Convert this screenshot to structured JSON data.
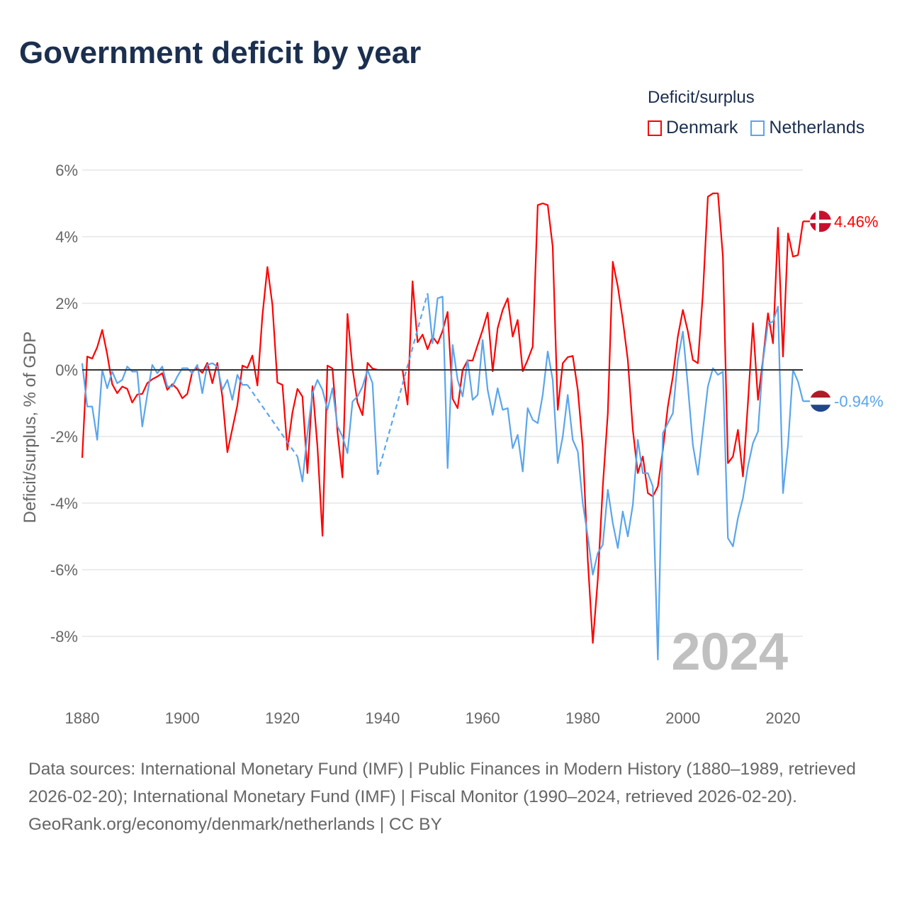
{
  "chart_data": {
    "type": "line",
    "title": "Government deficit by year",
    "ylabel": "Deficit/surplus, % of GDP",
    "xlabel": "",
    "xlim": [
      1880,
      2024
    ],
    "ylim": [
      -9.5,
      6
    ],
    "yticks": [
      6,
      4,
      2,
      0,
      -2,
      -4,
      -6,
      -8
    ],
    "ytick_labels": [
      "6%",
      "4%",
      "2%",
      "0%",
      "-2%",
      "-4%",
      "-6%",
      "-8%"
    ],
    "xticks": [
      1880,
      1900,
      1920,
      1940,
      1960,
      1980,
      2000,
      2020
    ],
    "xtick_labels": [
      "1880",
      "1900",
      "1920",
      "1940",
      "1960",
      "1980",
      "2000",
      "2020"
    ],
    "grid": true,
    "legend_title": "Deficit/surplus",
    "legend_position": "top-right",
    "year_watermark": "2024",
    "start_year": 1880,
    "series": [
      {
        "name": "Denmark",
        "color": "#ff0000",
        "end_label": "4.46%",
        "values": [
          -2.64,
          0.4,
          0.34,
          0.68,
          1.2,
          0.47,
          -0.43,
          -0.7,
          -0.5,
          -0.57,
          -0.98,
          -0.74,
          -0.72,
          -0.4,
          -0.28,
          -0.2,
          -0.1,
          -0.6,
          -0.43,
          -0.57,
          -0.85,
          -0.72,
          -0.06,
          0.06,
          -0.09,
          0.21,
          -0.4,
          0.21,
          -0.8,
          -2.47,
          -1.77,
          -1.06,
          0.13,
          0.06,
          0.43,
          -0.47,
          1.62,
          3.09,
          1.96,
          -0.38,
          -0.45,
          -2.4,
          -1.28,
          -0.57,
          -0.8,
          -3.1,
          -0.49,
          -2.3,
          -4.98,
          0.13,
          0.04,
          -1.87,
          -3.23,
          1.68,
          0.04,
          -0.98,
          -1.36,
          0.21,
          0.04,
          0,
          0,
          0,
          0,
          0,
          0,
          -1.04,
          2.66,
          0.83,
          1.06,
          0.62,
          1.0,
          0.79,
          1.17,
          1.74,
          -0.87,
          -1.15,
          0.0,
          0.28,
          0.28,
          0.75,
          1.2,
          1.72,
          -0.04,
          1.25,
          1.8,
          2.15,
          1.0,
          1.5,
          -0.04,
          0.3,
          0.7,
          4.95,
          5.0,
          4.95,
          3.7,
          -1.2,
          0.2,
          0.38,
          0.42,
          -0.6,
          -2.3,
          -5.7,
          -8.2,
          -6.3,
          -3.5,
          -1.3,
          3.25,
          2.5,
          1.5,
          0.3,
          -1.8,
          -3.1,
          -2.6,
          -3.7,
          -3.8,
          -3.5,
          -2.4,
          -1.1,
          -0.2,
          1.0,
          1.8,
          1.15,
          0.3,
          0.2,
          2.3,
          5.2,
          5.3,
          5.3,
          3.4,
          -2.8,
          -2.6,
          -1.8,
          -3.2,
          -1.0,
          1.4,
          -0.9,
          0.3,
          1.7,
          0.8,
          4.27,
          0.4,
          4.1,
          3.4,
          3.45,
          4.46
        ]
      },
      {
        "name": "Netherlands",
        "color": "#5aa5ec",
        "end_label": "-0.94%",
        "values": [
          0.2,
          -1.1,
          -1.1,
          -2.1,
          0.0,
          -0.55,
          -0.05,
          -0.4,
          -0.3,
          0.1,
          -0.05,
          -0.05,
          -1.7,
          -0.75,
          0.15,
          -0.1,
          0.1,
          -0.5,
          -0.5,
          -0.2,
          0.05,
          0.05,
          -0.1,
          0.15,
          -0.7,
          0.15,
          0.2,
          0.1,
          -0.6,
          -0.3,
          -0.9,
          -0.15,
          -0.45,
          -0.45,
          null,
          null,
          null,
          null,
          null,
          null,
          null,
          null,
          null,
          -2.6,
          -3.35,
          -1.9,
          -0.7,
          -0.3,
          -0.6,
          -1.2,
          -0.55,
          -1.7,
          -2.0,
          -2.5,
          -0.95,
          -0.8,
          -0.5,
          0.0,
          -0.4,
          -3.15,
          null,
          null,
          null,
          null,
          null,
          null,
          null,
          null,
          null,
          2.3,
          0.8,
          2.15,
          2.2,
          -2.95,
          0.75,
          -0.3,
          -0.8,
          0.3,
          -0.9,
          -0.75,
          0.9,
          -0.6,
          -1.35,
          -0.55,
          -1.2,
          -1.15,
          -2.35,
          -1.95,
          -3.05,
          -1.15,
          -1.5,
          -1.6,
          -0.75,
          0.55,
          -0.3,
          -2.8,
          -2.0,
          -0.75,
          -2.1,
          -2.45,
          -4.0,
          -5.0,
          -6.15,
          -5.5,
          -5.25,
          -3.6,
          -4.6,
          -5.35,
          -4.25,
          -5.0,
          -4.05,
          -2.1,
          -3.1,
          -3.1,
          -3.5,
          -8.7,
          -1.9,
          -1.6,
          -1.3,
          0.3,
          1.15,
          -0.5,
          -2.25,
          -3.15,
          -1.8,
          -0.5,
          0.05,
          -0.15,
          -0.05,
          -5.05,
          -5.3,
          -4.45,
          -3.85,
          -2.9,
          -2.2,
          -1.85,
          0.25,
          1.4,
          1.45,
          1.9,
          -3.7,
          -2.25,
          0.0,
          -0.35,
          -0.94
        ]
      }
    ]
  },
  "footer": {
    "sources": "Data sources: International Monetary Fund (IMF) | Public Finances in Modern History (1880–1989, retrieved 2026-02-20); International Monetary Fund (IMF) | Fiscal Monitor (1990–2024, retrieved 2026-02-20).",
    "link": "GeoRank.org/economy/denmark/netherlands",
    "license": "CC BY"
  }
}
